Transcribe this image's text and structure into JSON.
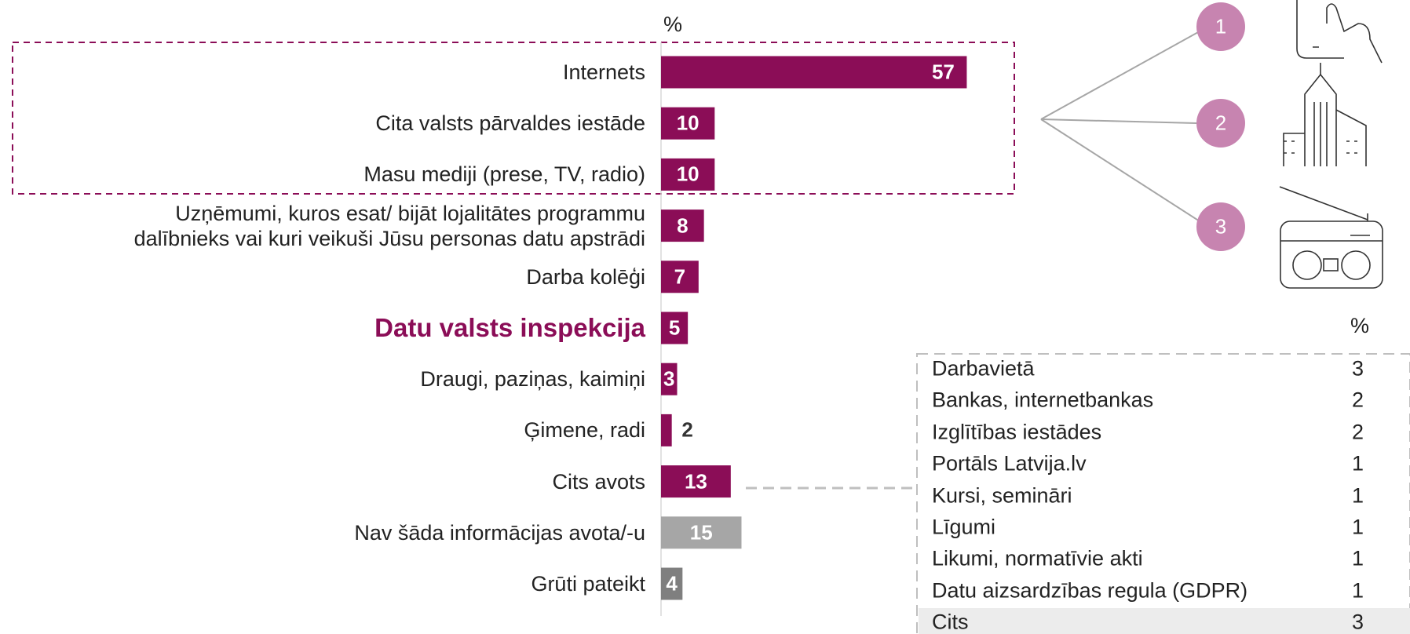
{
  "chart_data": {
    "type": "bar",
    "orientation": "horizontal",
    "unit_label": "%",
    "categories": [
      "Internets",
      "Cita valsts pārvaldes iestāde",
      "Masu mediji (prese, TV, radio)",
      "Uzņēmumi, kuros esat/ bijāt lojalitātes programmu\ndalībnieks vai kuri veikuši Jūsu personas datu apstrādi",
      "Darba kolēģi",
      "Datu valsts inspekcija",
      "Draugi, paziņas, kaimiņi",
      "Ģimene, radi",
      "Cits avots",
      "Nav šāda informācijas avota/-u",
      "Grūti pateikt"
    ],
    "values": [
      57,
      10,
      10,
      8,
      7,
      5,
      3,
      2,
      13,
      15,
      4
    ],
    "colors": [
      "#8b0d57",
      "#8b0d57",
      "#8b0d57",
      "#8b0d57",
      "#8b0d57",
      "#8b0d57",
      "#8b0d57",
      "#8b0d57",
      "#8b0d57",
      "#a6a6a6",
      "#7f7f7f"
    ],
    "highlight_category": 5,
    "callouts": [
      "1",
      "2",
      "3"
    ]
  },
  "table": {
    "unit_label": "%",
    "rows": [
      [
        "Darbavietā",
        "3"
      ],
      [
        "Bankas, internetbankas",
        "2"
      ],
      [
        "Izglītības iestādes",
        "2"
      ],
      [
        "Portāls Latvija.lv",
        "1"
      ],
      [
        "Kursi, semināri",
        "1"
      ],
      [
        "Līgumi",
        "1"
      ],
      [
        "Likumi, normatīvie akti",
        "1"
      ],
      [
        "Datu aizsardzības regula (GDPR)",
        "1"
      ],
      [
        "Cits",
        "3"
      ]
    ]
  }
}
